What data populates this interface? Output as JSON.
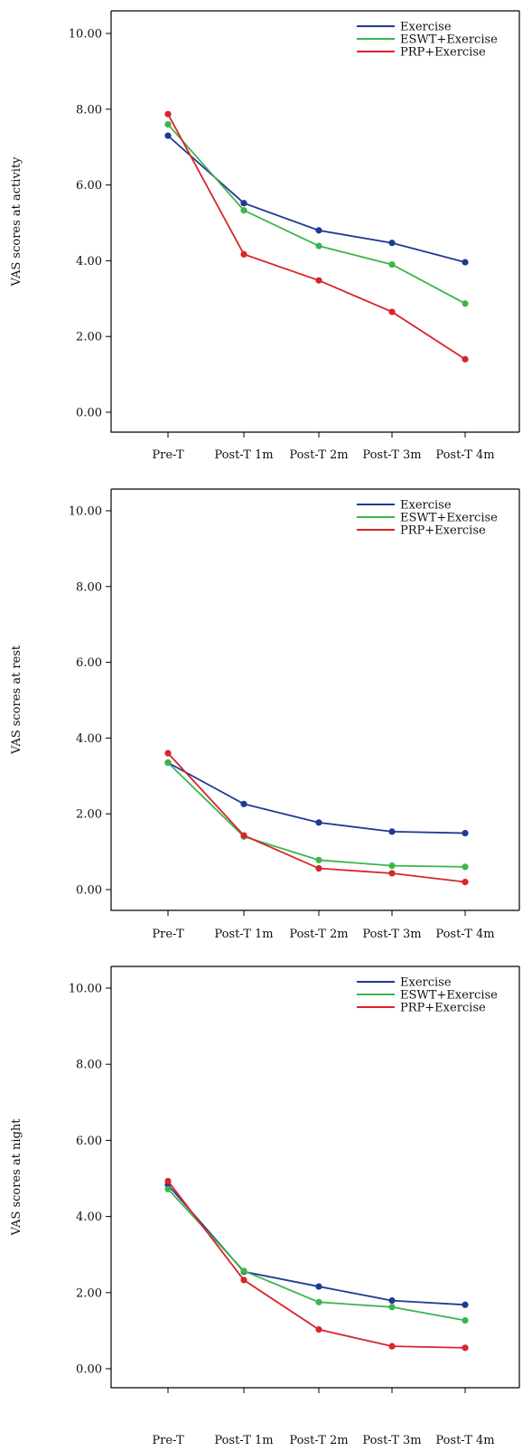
{
  "chart_data": [
    {
      "type": "line",
      "ylabel": "VAS scores at activity",
      "xlabel": "",
      "title": "",
      "categories": [
        "Pre-T",
        "Post-T 1m",
        "Post-T 2m",
        "Post-T 3m",
        "Post-T 4m"
      ],
      "ylim": [
        -0.3,
        10.5
      ],
      "yticks": [
        "0.00",
        "2.00",
        "4.00",
        "6.00",
        "8.00",
        "10.00"
      ],
      "legend_position": "top-right",
      "grid": false,
      "series": [
        {
          "name": "Exercise",
          "color": "#1f3a93",
          "values": [
            7.3,
            5.52,
            4.8,
            4.47,
            3.96
          ]
        },
        {
          "name": "ESWT+Exercise",
          "color": "#3cb54a",
          "values": [
            7.6,
            5.33,
            4.39,
            3.9,
            2.87
          ]
        },
        {
          "name": "PRP+Exercise",
          "color": "#d7262a",
          "values": [
            7.87,
            4.17,
            3.48,
            2.65,
            1.4
          ]
        }
      ]
    },
    {
      "type": "line",
      "ylabel": "VAS scores at rest",
      "xlabel": "",
      "title": "",
      "categories": [
        "Pre-T",
        "Post-T 1m",
        "Post-T 2m",
        "Post-T 3m",
        "Post-T 4m"
      ],
      "ylim": [
        -0.3,
        10.5
      ],
      "yticks": [
        "0.00",
        "2.00",
        "4.00",
        "6.00",
        "8.00",
        "10.00"
      ],
      "legend_position": "top-right",
      "grid": false,
      "series": [
        {
          "name": "Exercise",
          "color": "#1f3a93",
          "values": [
            3.35,
            2.26,
            1.77,
            1.53,
            1.49
          ]
        },
        {
          "name": "ESWT+Exercise",
          "color": "#3cb54a",
          "values": [
            3.35,
            1.4,
            0.78,
            0.63,
            0.6
          ]
        },
        {
          "name": "PRP+Exercise",
          "color": "#d7262a",
          "values": [
            3.6,
            1.43,
            0.56,
            0.43,
            0.2
          ]
        }
      ]
    },
    {
      "type": "line",
      "ylabel": "VAS scores at night",
      "xlabel": "",
      "title": "",
      "categories": [
        "Pre-T",
        "Post-T 1m",
        "Post-T 2m",
        "Post-T 3m",
        "Post-T 4m"
      ],
      "ylim": [
        -0.3,
        10.5
      ],
      "yticks": [
        "0.00",
        "2.00",
        "4.00",
        "6.00",
        "8.00",
        "10.00"
      ],
      "legend_position": "top-right",
      "grid": false,
      "series": [
        {
          "name": "Exercise",
          "color": "#1f3a93",
          "values": [
            4.83,
            2.55,
            2.16,
            1.79,
            1.68
          ]
        },
        {
          "name": "ESWT+Exercise",
          "color": "#3cb54a",
          "values": [
            4.72,
            2.57,
            1.75,
            1.62,
            1.27
          ]
        },
        {
          "name": "PRP+Exercise",
          "color": "#d7262a",
          "values": [
            4.93,
            2.33,
            1.03,
            0.59,
            0.55
          ]
        }
      ]
    }
  ]
}
